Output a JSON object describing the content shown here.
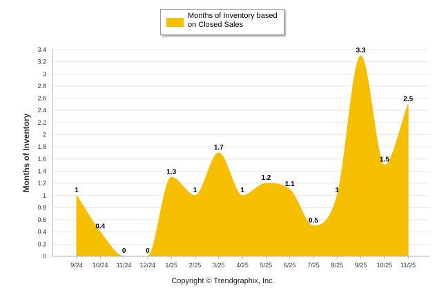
{
  "chart_data": {
    "type": "area",
    "smooth": true,
    "categories": [
      "9/24",
      "10/24",
      "11/24",
      "12/24",
      "1/25",
      "2/25",
      "3/25",
      "4/25",
      "5/25",
      "6/25",
      "7/25",
      "8/25",
      "9/25",
      "10/25",
      "11/25"
    ],
    "series": [
      {
        "name": "Months of Inventory based on Closed Sales",
        "values": [
          1,
          0.4,
          0,
          0,
          1.3,
          1,
          1.7,
          1,
          1.2,
          1.1,
          0.5,
          1,
          3.3,
          1.5,
          2.5
        ]
      }
    ],
    "data_labels": [
      "1",
      "0.4",
      "0",
      "0",
      "1.3",
      "1",
      "1.7",
      "1",
      "1.2",
      "1.1",
      "0.5",
      "1",
      "3.3",
      "1.5",
      "2.5"
    ],
    "ylabel": "Months of Inventory",
    "xlabel": "",
    "ylim": [
      0,
      3.4
    ],
    "yticks": [
      "0",
      "0.2",
      "0.4",
      "0.6",
      "0.8",
      "1",
      "1.2",
      "1.4",
      "1.6",
      "1.8",
      "2",
      "2.2",
      "2.4",
      "2.6",
      "2.8",
      "3",
      "3.2",
      "3.4"
    ],
    "grid": true,
    "legend_position": "top-center"
  },
  "legend": {
    "label": "Months of Inventory based on Closed Sales"
  },
  "footer": {
    "copyright": "Copyright © Trendgraphix, Inc."
  },
  "colors": {
    "series": "#f5bf00",
    "grid": "#e6e6e6",
    "axis": "#b0b0b0"
  }
}
